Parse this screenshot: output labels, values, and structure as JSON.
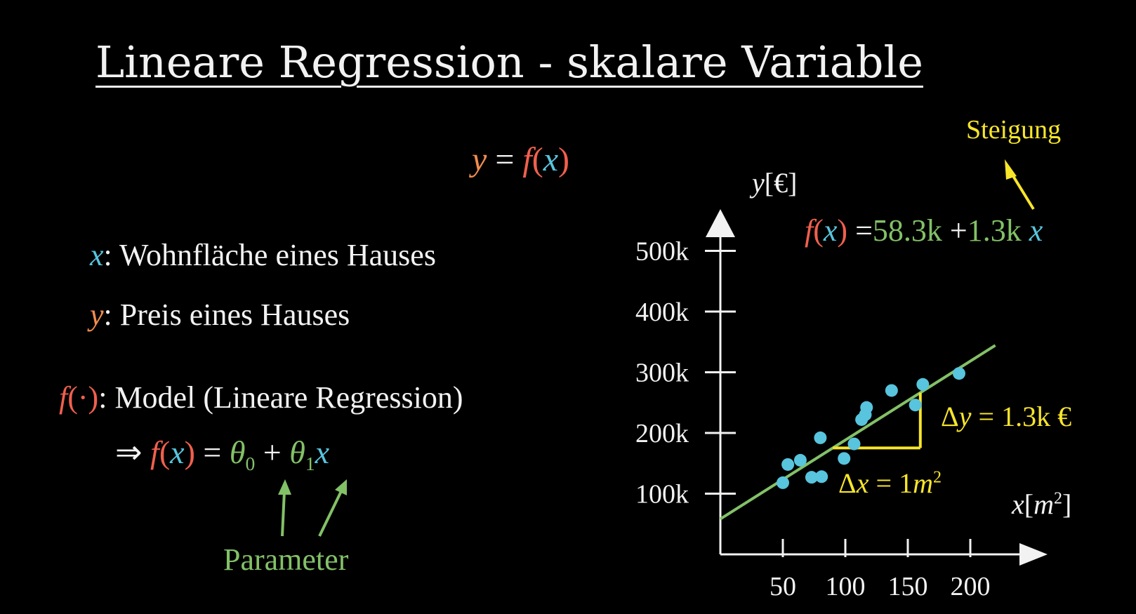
{
  "title": "Lineare Regression - skalare Variable",
  "top_equation": {
    "y": "y",
    "eq": "=",
    "f": "f",
    "lp": "(",
    "x": "x",
    "rp": ")"
  },
  "definitions": {
    "x_symbol": "x",
    "x_text": "Wohnfläche eines Hauses",
    "y_symbol": "y",
    "y_text": "Preis eines Hauses",
    "f_symbol": "f",
    "f_arg": "(·)",
    "f_text": "Model (Lineare Regression)",
    "colon": ":"
  },
  "model_equation": {
    "implies": "⇒",
    "f": "f",
    "lp": "(",
    "x": "x",
    "rp": ")",
    "eq": "=",
    "theta0": "θ",
    "sub0": "0",
    "plus": "+",
    "theta1": "θ",
    "sub1": "1",
    "x2": "x"
  },
  "parameter_label": "Parameter",
  "steigung_label": "Steigung",
  "fit_equation": {
    "f": "f",
    "lp": "(",
    "x": "x",
    "rp": ")",
    "eq": "=",
    "intercept": "58.3k",
    "plus": "+",
    "slope": "1.3k",
    "x2": "x"
  },
  "delta_y": {
    "delta": "Δ",
    "var": "y",
    "eq": "=",
    "value": "1.3k",
    "unit": "€"
  },
  "delta_x": {
    "delta": "Δ",
    "var": "x",
    "eq": "=",
    "value": "1",
    "unit": "m",
    "exp": "2"
  },
  "colors": {
    "blue": "#58c4dd",
    "orange": "#f28c4e",
    "red": "#f0604e",
    "green": "#83c167",
    "yellow": "#f7e52b",
    "white": "#f2f2f2"
  },
  "chart_data": {
    "type": "scatter",
    "xlabel": {
      "var": "x",
      "lb": "[",
      "unit": "m",
      "exp": "2",
      "rb": "]"
    },
    "ylabel": {
      "var": "y",
      "lb": "[",
      "unit": "€",
      "rb": "]"
    },
    "xticks": [
      50,
      100,
      150,
      200
    ],
    "xtick_labels": [
      "50",
      "100",
      "150",
      "200"
    ],
    "yticks": [
      100000,
      200000,
      300000,
      400000,
      500000
    ],
    "ytick_labels": [
      "100k",
      "200k",
      "300k",
      "400k",
      "500k"
    ],
    "xlim": [
      0,
      255
    ],
    "ylim": [
      0,
      560000
    ],
    "grid": false,
    "points": [
      {
        "x": 50,
        "y": 118000
      },
      {
        "x": 54,
        "y": 148000
      },
      {
        "x": 64,
        "y": 155000
      },
      {
        "x": 73,
        "y": 127000
      },
      {
        "x": 81,
        "y": 128000
      },
      {
        "x": 80,
        "y": 192000
      },
      {
        "x": 99,
        "y": 158000
      },
      {
        "x": 107,
        "y": 182000
      },
      {
        "x": 113,
        "y": 222000
      },
      {
        "x": 116,
        "y": 230000
      },
      {
        "x": 117,
        "y": 242000
      },
      {
        "x": 137,
        "y": 270000
      },
      {
        "x": 156,
        "y": 246000
      },
      {
        "x": 162,
        "y": 280000
      },
      {
        "x": 191,
        "y": 298000
      }
    ],
    "fit_line": {
      "intercept": 58300,
      "slope": 1300
    },
    "fit_x_range": [
      0,
      220
    ],
    "slope_triangle": {
      "x0": 90,
      "x1": 160
    }
  }
}
